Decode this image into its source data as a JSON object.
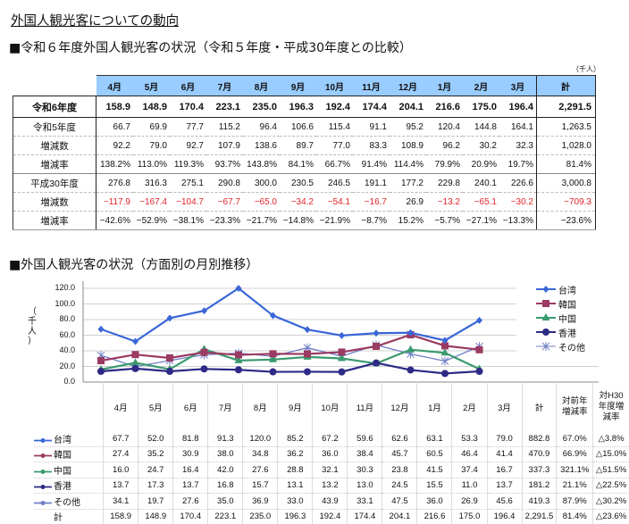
{
  "page_title": "外国人観光客についての動向",
  "section1": {
    "heading": "■令和６年度外国人観光客の状況（令和５年度・平成30年度との比較）",
    "unit": "（千人）",
    "columns": [
      "4月",
      "5月",
      "6月",
      "7月",
      "8月",
      "9月",
      "10月",
      "11月",
      "12月",
      "1月",
      "2月",
      "3月",
      "計"
    ],
    "rows": [
      {
        "label": "令和6年度",
        "values": [
          "158.9",
          "148.9",
          "170.4",
          "223.1",
          "235.0",
          "196.3",
          "192.4",
          "174.4",
          "204.1",
          "216.6",
          "175.0",
          "196.4",
          "2,291.5"
        ]
      },
      {
        "label": "令和5年度",
        "values": [
          "66.7",
          "69.9",
          "77.7",
          "115.2",
          "96.4",
          "106.6",
          "115.4",
          "91.1",
          "95.2",
          "120.4",
          "144.8",
          "164.1",
          "1,263.5"
        ]
      },
      {
        "label": "増減数",
        "values": [
          "92.2",
          "79.0",
          "92.7",
          "107.9",
          "138.6",
          "89.7",
          "77.0",
          "83.3",
          "108.9",
          "96.2",
          "30.2",
          "32.3",
          "1,028.0"
        ]
      },
      {
        "label": "増減率",
        "values": [
          "138.2%",
          "113.0%",
          "119.3%",
          "93.7%",
          "143.8%",
          "84.1%",
          "66.7%",
          "91.4%",
          "114.4%",
          "79.9%",
          "20.9%",
          "19.7%",
          "81.4%"
        ]
      },
      {
        "label": "平成30年度",
        "values": [
          "276.8",
          "316.3",
          "275.1",
          "290.8",
          "300.0",
          "230.5",
          "246.5",
          "191.1",
          "177.2",
          "229.8",
          "240.1",
          "226.6",
          "3,000.8"
        ]
      },
      {
        "label": "増減数",
        "values": [
          "−117.9",
          "−167.4",
          "−104.7",
          "−67.7",
          "−65.0",
          "−34.2",
          "−54.1",
          "−16.7",
          "26.9",
          "−13.2",
          "−65.1",
          "−30.2",
          "−709.3"
        ]
      },
      {
        "label": "増減率",
        "values": [
          "−42.6%",
          "−52.9%",
          "−38.1%",
          "−23.3%",
          "−21.7%",
          "−14.8%",
          "−21.9%",
          "−8.7%",
          "15.2%",
          "−5.7%",
          "−27.1%",
          "−13.3%",
          "−23.6%"
        ]
      }
    ],
    "header_color": "#99ccff",
    "negative_color": "#e0242b"
  },
  "section2": {
    "heading": "■外国人観光客の状況（方面別の月別推移）",
    "y_axis_label": "（千人）",
    "table_headers": [
      "4月",
      "5月",
      "6月",
      "7月",
      "8月",
      "9月",
      "10月",
      "11月",
      "12月",
      "1月",
      "2月",
      "3月",
      "計",
      "対前年増減率",
      "対H30年度増減率"
    ],
    "h_prev": [
      "対前年",
      "増減率"
    ],
    "h_h30": [
      "対H30",
      "年度増",
      "減率"
    ],
    "rows": [
      {
        "label": "台湾",
        "values": [
          "67.7",
          "52.0",
          "81.8",
          "91.3",
          "120.0",
          "85.2",
          "67.2",
          "59.6",
          "62.6",
          "63.1",
          "53.3",
          "79.0",
          "882.8",
          "67.0%",
          "△3.8%"
        ]
      },
      {
        "label": "韓国",
        "values": [
          "27.4",
          "35.2",
          "30.9",
          "38.0",
          "34.8",
          "36.2",
          "36.0",
          "38.4",
          "45.7",
          "60.5",
          "46.4",
          "41.4",
          "470.9",
          "66.9%",
          "△15.0%"
        ]
      },
      {
        "label": "中国",
        "values": [
          "16.0",
          "24.7",
          "16.4",
          "42.0",
          "27.6",
          "28.8",
          "32.1",
          "30.3",
          "23.8",
          "41.5",
          "37.4",
          "16.7",
          "337.3",
          "321.1%",
          "△51.5%"
        ]
      },
      {
        "label": "香港",
        "values": [
          "13.7",
          "17.3",
          "13.7",
          "16.8",
          "15.7",
          "13.1",
          "13.2",
          "13.0",
          "24.5",
          "15.5",
          "11.0",
          "13.7",
          "181.2",
          "21.1%",
          "△22.5%"
        ]
      },
      {
        "label": "その他",
        "values": [
          "34.1",
          "19.7",
          "27.6",
          "35.0",
          "36.9",
          "33.0",
          "43.9",
          "33.1",
          "47.5",
          "36.0",
          "26.9",
          "45.6",
          "419.3",
          "87.9%",
          "△30.2%"
        ]
      },
      {
        "label": "計",
        "values": [
          "158.9",
          "148.9",
          "170.4",
          "223.1",
          "235.0",
          "196.3",
          "192.4",
          "174.4",
          "204.1",
          "216.6",
          "175.0",
          "196.4",
          "2,291.5",
          "81.4%",
          "△23.6%"
        ]
      }
    ]
  },
  "chart_data": {
    "type": "line",
    "title": "外国人観光客の状況（方面別の月別推移）",
    "xlabel": "",
    "ylabel": "（千人）",
    "ylim": [
      0,
      120
    ],
    "yticks": [
      "0.0",
      "20.0",
      "40.0",
      "60.0",
      "80.0",
      "100.0",
      "120.0"
    ],
    "categories": [
      "4月",
      "5月",
      "6月",
      "7月",
      "8月",
      "9月",
      "10月",
      "11月",
      "12月",
      "1月",
      "2月",
      "3月"
    ],
    "grid": true,
    "legend_position": "right",
    "series": [
      {
        "name": "台湾",
        "color": "#3a66d8",
        "marker": "diamond",
        "values": [
          67.7,
          52.0,
          81.8,
          91.3,
          120.0,
          85.2,
          67.2,
          59.6,
          62.6,
          63.1,
          53.3,
          79.0
        ]
      },
      {
        "name": "韓国",
        "color": "#9b3a62",
        "marker": "square",
        "values": [
          27.4,
          35.2,
          30.9,
          38.0,
          34.8,
          36.2,
          36.0,
          38.4,
          45.7,
          60.5,
          46.4,
          41.4
        ]
      },
      {
        "name": "中国",
        "color": "#3a9a6e",
        "marker": "triangle",
        "values": [
          16.0,
          24.7,
          16.4,
          42.0,
          27.6,
          28.8,
          32.1,
          30.3,
          23.8,
          41.5,
          37.4,
          16.7
        ]
      },
      {
        "name": "香港",
        "color": "#2e2a86",
        "marker": "circle",
        "values": [
          13.7,
          17.3,
          13.7,
          16.8,
          15.7,
          13.1,
          13.2,
          13.0,
          24.5,
          15.5,
          11.0,
          13.7
        ]
      },
      {
        "name": "その他",
        "color": "#6f7fc8",
        "marker": "asterisk",
        "values": [
          34.1,
          19.7,
          27.6,
          35.0,
          36.9,
          33.0,
          43.9,
          33.1,
          47.5,
          36.0,
          26.9,
          45.6
        ]
      }
    ]
  }
}
